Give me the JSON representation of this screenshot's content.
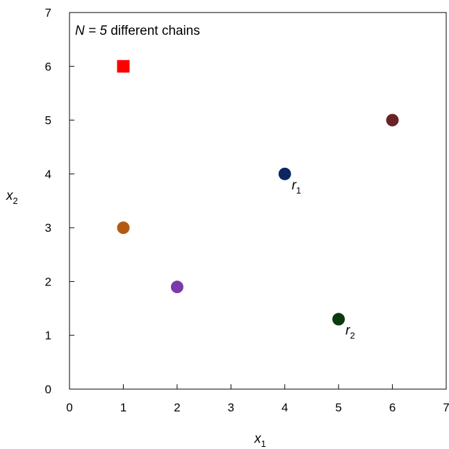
{
  "chart_data": {
    "type": "scatter",
    "title": "",
    "xlabel": {
      "main": "x",
      "sub": "1"
    },
    "ylabel": {
      "main": "x",
      "sub": "2"
    },
    "xlim": [
      0,
      7
    ],
    "ylim": [
      0,
      7
    ],
    "xticks": [
      0,
      1,
      2,
      3,
      4,
      5,
      6,
      7
    ],
    "yticks": [
      0,
      1,
      2,
      3,
      4,
      5,
      6,
      7
    ],
    "grid": false,
    "annotation": {
      "italic": "N = 5",
      "rest": " different chains"
    },
    "points": [
      {
        "x": 1,
        "y": 6,
        "marker": "square",
        "color": "#ff0000"
      },
      {
        "x": 1,
        "y": 3,
        "marker": "circle",
        "color": "#b35a12"
      },
      {
        "x": 2,
        "y": 1.9,
        "marker": "circle",
        "color": "#7b3aa8"
      },
      {
        "x": 4,
        "y": 4,
        "marker": "circle",
        "color": "#0b2660",
        "label": "r",
        "label_sub": "1"
      },
      {
        "x": 5,
        "y": 1.3,
        "marker": "circle",
        "color": "#0a3a10",
        "label": "r",
        "label_sub": "2"
      },
      {
        "x": 6,
        "y": 5,
        "marker": "circle",
        "color": "#6b2226"
      }
    ]
  }
}
